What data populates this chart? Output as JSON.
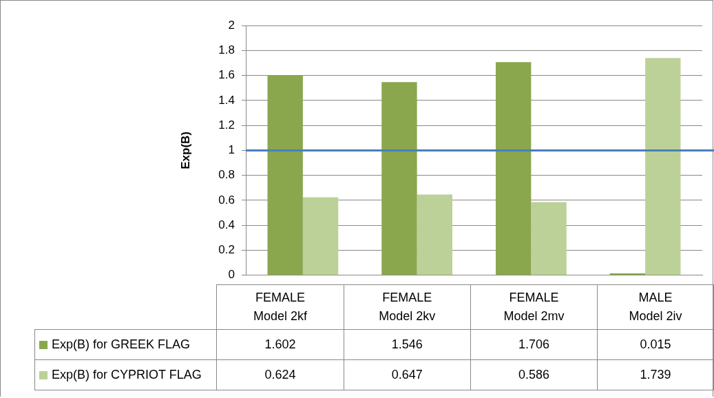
{
  "chart_data": {
    "type": "bar",
    "ylabel": "Exp(B)",
    "categories": [
      "FEMALE Model 2kf",
      "FEMALE Model 2kv",
      "FEMALE Model 2mv",
      "MALE Model 2iv"
    ],
    "series": [
      {
        "name": "Exp(B) for GREEK FLAG",
        "color": "#8aa74e",
        "values": [
          1.602,
          1.546,
          1.706,
          0.015
        ]
      },
      {
        "name": "Exp(B) for CYPRIOT FLAG",
        "color": "#bcd197",
        "values": [
          0.624,
          0.647,
          0.586,
          1.739
        ]
      }
    ],
    "ylim": [
      0,
      2
    ],
    "yticks": [
      0,
      0.2,
      0.4,
      0.6,
      0.8,
      1,
      1.2,
      1.4,
      1.6,
      1.8,
      2
    ],
    "ref_lines": [
      {
        "axis": "y",
        "value": 1,
        "color": "#4a7ebb"
      }
    ],
    "grid": "y",
    "legend": "bottom",
    "data_labels": true
  }
}
